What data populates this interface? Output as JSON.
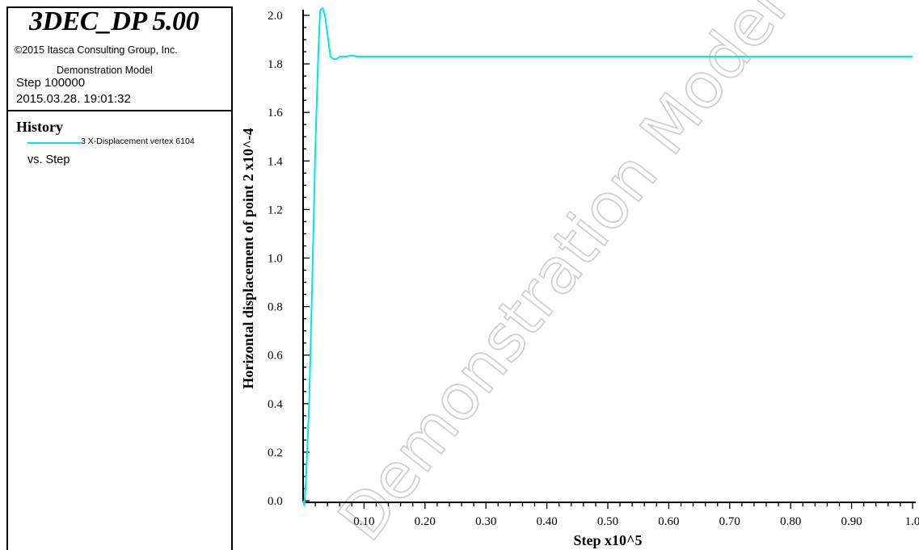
{
  "header": {
    "app_title": "3DEC_DP 5.00",
    "copyright": "©2015 Itasca Consulting Group, Inc.",
    "model_name": "Demonstration Model",
    "step": "Step 100000",
    "datetime": "2015.03.28. 19:01:32"
  },
  "legend": {
    "heading": "History",
    "items": [
      {
        "label": "3 X-Displacement vertex 6104",
        "color": "#00e6e6"
      }
    ],
    "vs_label": "vs. Step"
  },
  "watermark": "Demonstration Model",
  "chart_data": {
    "type": "line",
    "xlabel": "Step x10^5",
    "ylabel": "Horizontal displacement of point 2 x10^-4",
    "xlim": [
      0,
      1.0
    ],
    "ylim": [
      0,
      2.0
    ],
    "x_ticks": [
      "0.10",
      "0.20",
      "0.30",
      "0.40",
      "0.50",
      "0.60",
      "0.70",
      "0.80",
      "0.90",
      "1.0"
    ],
    "y_ticks": [
      "0.0",
      "0.2",
      "0.4",
      "0.6",
      "0.8",
      "1.0",
      "1.2",
      "1.4",
      "1.6",
      "1.8",
      "2.0"
    ],
    "grid": false,
    "series": [
      {
        "name": "3 X-Displacement vertex 6104",
        "color": "#00e6e6",
        "x": [
          0,
          0.002,
          0.005,
          0.01,
          0.015,
          0.02,
          0.025,
          0.028,
          0.032,
          0.036,
          0.04,
          0.045,
          0.05,
          0.055,
          0.06,
          0.07,
          0.08,
          0.09,
          0.1,
          0.2,
          0.4,
          0.6,
          0.8,
          1.0
        ],
        "y": [
          0,
          -0.02,
          0.1,
          0.4,
          0.9,
          1.45,
          1.85,
          2.02,
          2.03,
          2.0,
          1.92,
          1.83,
          1.82,
          1.82,
          1.83,
          1.83,
          1.835,
          1.83,
          1.83,
          1.83,
          1.83,
          1.83,
          1.83,
          1.83
        ]
      }
    ]
  }
}
